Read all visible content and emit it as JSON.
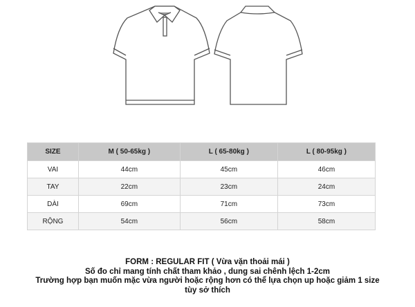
{
  "images": {
    "front": "polo-shirt-front",
    "back": "polo-shirt-back"
  },
  "table": {
    "headers": [
      "SIZE",
      "M ( 50-65kg )",
      "L ( 65-80kg )",
      "L ( 80-95kg )"
    ],
    "rows": [
      {
        "label": "VAI",
        "values": [
          "44cm",
          "45cm",
          "46cm"
        ]
      },
      {
        "label": "TAY",
        "values": [
          "22cm",
          "23cm",
          "24cm"
        ]
      },
      {
        "label": "DÀI",
        "values": [
          "69cm",
          "71cm",
          "73cm"
        ]
      },
      {
        "label": "RỘNG",
        "values": [
          "54cm",
          "56cm",
          "58cm"
        ]
      }
    ]
  },
  "notes": [
    "FORM : REGULAR FIT ( Vừa vặn thoải mái )",
    "Số đo chỉ mang tính chất tham khảo , dung sai chênh lệch 1-2cm",
    "Trường hợp bạn muốn mặc vừa người hoặc rộng hơn có thể lựa chọn up hoặc giảm 1 size",
    "tùy sở thích"
  ]
}
